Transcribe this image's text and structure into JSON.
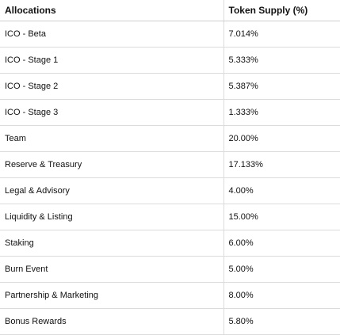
{
  "table": {
    "headers": {
      "allocation": "Allocations",
      "supply": "Token Supply (%)"
    },
    "rows": [
      {
        "allocation": "ICO - Beta",
        "supply": "7.014%"
      },
      {
        "allocation": "ICO - Stage 1",
        "supply": "5.333%"
      },
      {
        "allocation": "ICO - Stage 2",
        "supply": "5.387%"
      },
      {
        "allocation": "ICO - Stage 3",
        "supply": "1.333%"
      },
      {
        "allocation": "Team",
        "supply": "20.00%"
      },
      {
        "allocation": "Reserve & Treasury",
        "supply": "17.133%"
      },
      {
        "allocation": "Legal & Advisory",
        "supply": "4.00%"
      },
      {
        "allocation": "Liquidity & Listing",
        "supply": "15.00%"
      },
      {
        "allocation": "Staking",
        "supply": "6.00%"
      },
      {
        "allocation": "Burn Event",
        "supply": "5.00%"
      },
      {
        "allocation": "Partnership & Marketing",
        "supply": "8.00%"
      },
      {
        "allocation": "Bonus Rewards",
        "supply": "5.80%"
      }
    ]
  }
}
